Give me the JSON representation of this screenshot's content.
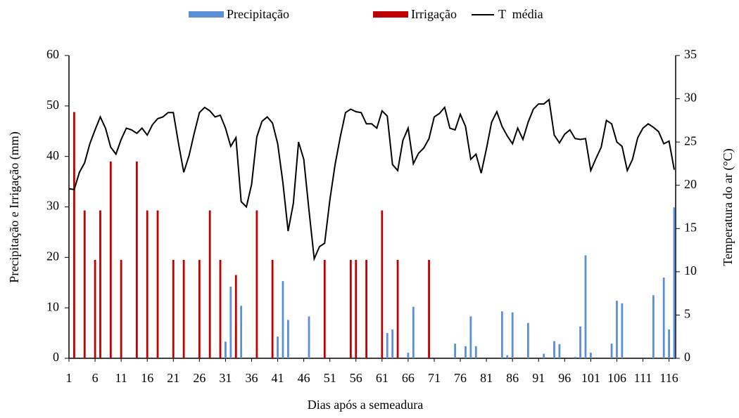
{
  "chart_data": {
    "type": "bar",
    "xlabel": "Dias após a semeadura",
    "ylabel": "Precipitação e Irrigação (mm)",
    "y2label": "Temperatura do ar (°C)",
    "x": [
      1,
      2,
      3,
      4,
      5,
      6,
      7,
      8,
      9,
      10,
      11,
      12,
      13,
      14,
      15,
      16,
      17,
      18,
      19,
      20,
      21,
      22,
      23,
      24,
      25,
      26,
      27,
      28,
      29,
      30,
      31,
      32,
      33,
      34,
      35,
      36,
      37,
      38,
      39,
      40,
      41,
      42,
      43,
      44,
      45,
      46,
      47,
      48,
      49,
      50,
      51,
      52,
      53,
      54,
      55,
      56,
      57,
      58,
      59,
      60,
      61,
      62,
      63,
      64,
      65,
      66,
      67,
      68,
      69,
      70,
      71,
      72,
      73,
      74,
      75,
      76,
      77,
      78,
      79,
      80,
      81,
      82,
      83,
      84,
      85,
      86,
      87,
      88,
      89,
      90,
      91,
      92,
      93,
      94,
      95,
      96,
      97,
      98,
      99,
      100,
      101,
      102,
      103,
      104,
      105,
      106,
      107,
      108,
      109,
      110,
      111,
      112,
      113,
      114,
      115,
      116,
      117
    ],
    "xlim": [
      1,
      117
    ],
    "xticks": [
      1,
      6,
      11,
      16,
      21,
      26,
      31,
      36,
      41,
      46,
      51,
      56,
      61,
      66,
      71,
      76,
      81,
      86,
      91,
      96,
      101,
      106,
      111,
      116
    ],
    "ylim": [
      0,
      60
    ],
    "yticks": [
      0,
      10,
      20,
      30,
      40,
      50,
      60
    ],
    "y2lim": [
      0,
      35
    ],
    "y2ticks": [
      0,
      5,
      10,
      15,
      20,
      25,
      30,
      35
    ],
    "series": [
      {
        "name": "Precipitação",
        "type": "bar",
        "color": "#5b8fd6",
        "values": [
          0,
          0,
          0,
          0,
          0,
          0,
          0,
          0,
          0,
          0,
          0,
          0,
          0,
          0,
          0,
          0,
          0,
          0,
          0,
          0,
          0,
          0,
          0,
          0,
          0,
          0,
          0,
          0,
          0,
          0,
          3.3,
          14.2,
          6.7,
          10.4,
          0,
          0,
          0,
          0,
          0,
          0,
          4.3,
          15.3,
          7.6,
          0,
          0,
          0,
          8.3,
          0,
          0,
          0,
          0,
          0,
          0,
          0,
          0,
          0,
          0,
          0,
          0,
          0,
          0,
          5,
          5.7,
          0,
          0,
          1.1,
          10.2,
          0,
          0,
          0,
          0,
          0,
          0,
          0,
          2.9,
          0,
          2.4,
          8.3,
          2.4,
          0,
          0,
          0,
          0,
          9.3,
          0.6,
          9.1,
          0,
          0,
          7,
          0,
          0,
          0.9,
          0,
          3.4,
          2.8,
          0,
          0,
          0.3,
          6.3,
          20.4,
          1.1,
          0,
          0,
          0,
          2.9,
          11.4,
          10.9,
          0,
          0,
          0,
          0,
          0,
          12.5,
          0,
          16,
          5.7,
          29.9
        ]
      },
      {
        "name": "Irrigação",
        "type": "bar",
        "color": "#c00000",
        "values": [
          0,
          48.8,
          0,
          29.3,
          0,
          19.5,
          29.3,
          0,
          39,
          0,
          19.5,
          0,
          0,
          39,
          0,
          29.3,
          0,
          29.3,
          0,
          0,
          19.5,
          0,
          19.5,
          0,
          0,
          19.5,
          0,
          29.3,
          0,
          19.5,
          0,
          0,
          16.5,
          0,
          0,
          0,
          29.3,
          0,
          0,
          19.5,
          0,
          0,
          0,
          0,
          0,
          0,
          0,
          0,
          0,
          19.5,
          0,
          0,
          0,
          0,
          19.5,
          19.5,
          0,
          19.5,
          0,
          0,
          29.3,
          0,
          0,
          19.5,
          0,
          0,
          0,
          0,
          0,
          19.5,
          0,
          0,
          0,
          0,
          0,
          0,
          0,
          0,
          0,
          0,
          0,
          0,
          0,
          0,
          0,
          0,
          0,
          0,
          0,
          0,
          0,
          0,
          0,
          0,
          0,
          0,
          0,
          0,
          0,
          0,
          0,
          0,
          0,
          0,
          0,
          0,
          0,
          0,
          0,
          0,
          0,
          0,
          0,
          0,
          0,
          0,
          0
        ]
      },
      {
        "name": "T  média",
        "type": "line",
        "axis": "y2",
        "color": "#000000",
        "values": [
          19.6,
          19.5,
          21.5,
          22.6,
          24.8,
          26.4,
          27.9,
          26.6,
          24.4,
          23.6,
          25.3,
          26.6,
          26.4,
          26.0,
          26.6,
          25.8,
          27.0,
          27.7,
          27.9,
          28.4,
          28.4,
          24.8,
          21.5,
          23.4,
          26.0,
          28.4,
          29.0,
          28.6,
          27.9,
          28.1,
          26.6,
          24.5,
          25.5,
          18.1,
          17.5,
          20.1,
          25.6,
          27.4,
          27.9,
          27.2,
          24.8,
          20.3,
          14.7,
          17.9,
          25.0,
          23.0,
          17.1,
          11.5,
          12.9,
          13.3,
          18.3,
          22.4,
          25.6,
          28.4,
          28.8,
          28.5,
          28.4,
          27.1,
          27.1,
          26.6,
          28.6,
          28.0,
          22.4,
          21.7,
          25.2,
          26.6,
          22.5,
          23.7,
          24.3,
          25.4,
          27.9,
          28.3,
          29.0,
          26.6,
          26.4,
          28.2,
          26.8,
          23.0,
          23.6,
          21.4,
          24.2,
          27.3,
          28.5,
          26.8,
          25.7,
          24.8,
          26.6,
          25.3,
          27.3,
          28.8,
          29.4,
          29.4,
          29.9,
          25.8,
          24.9,
          25.9,
          26.4,
          25.4,
          25.3,
          25.4,
          21.7,
          23.1,
          24.4,
          27.5,
          27.1,
          25.0,
          24.5,
          21.7,
          23.0,
          25.5,
          26.6,
          27.1,
          26.7,
          26.2,
          24.8,
          25.1,
          21.8
        ]
      }
    ]
  }
}
